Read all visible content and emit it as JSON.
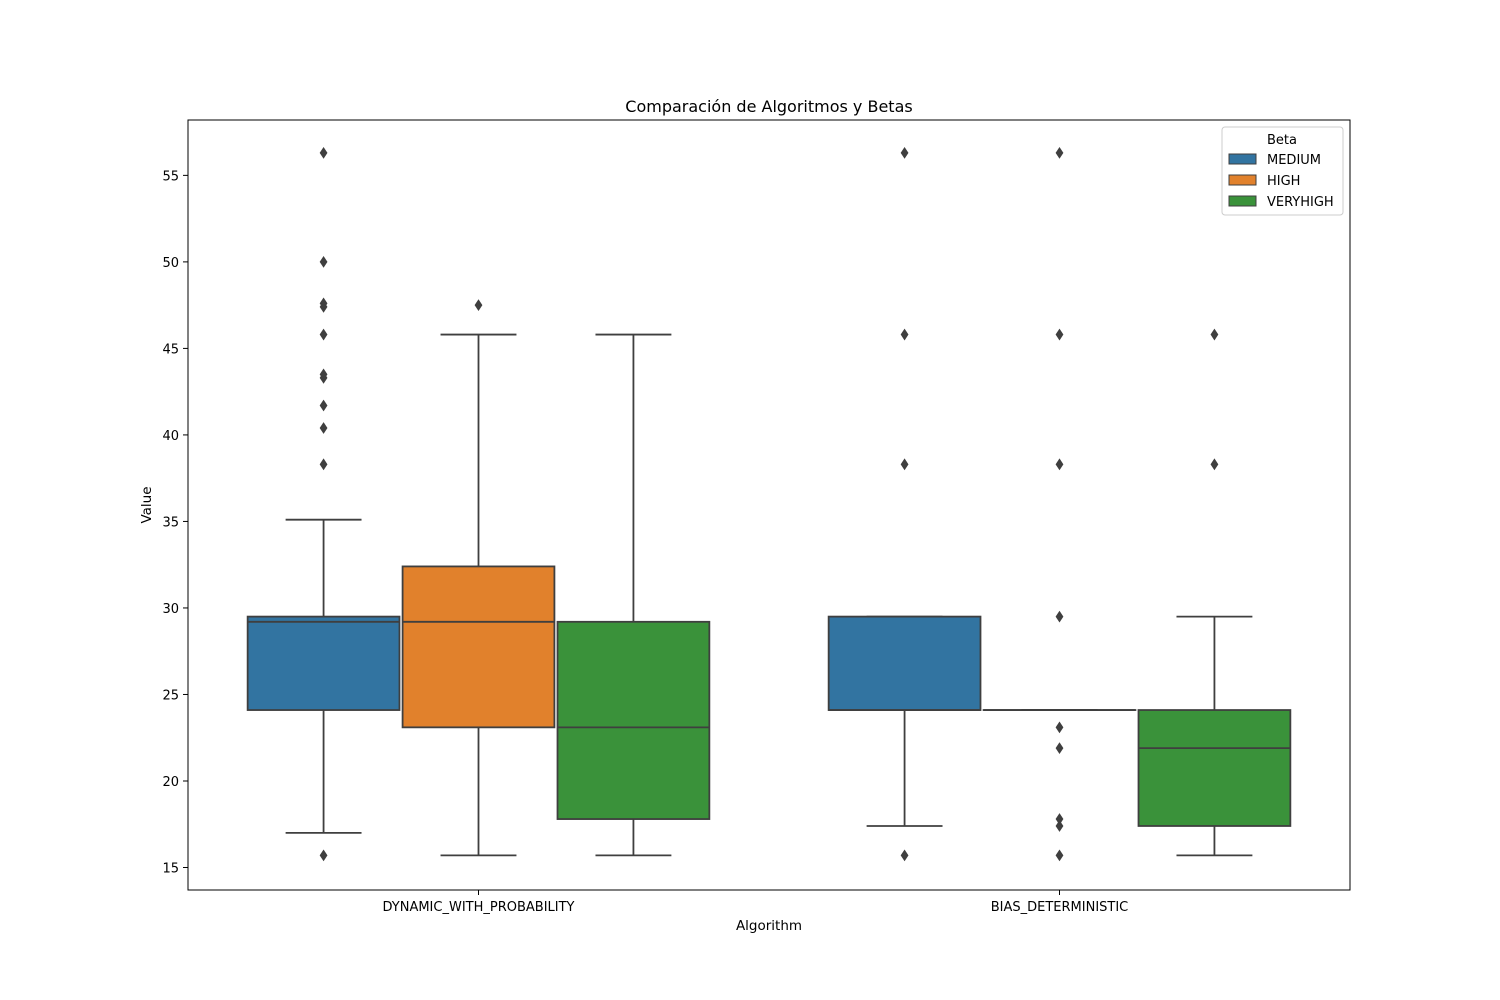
{
  "chart_data": {
    "type": "box",
    "title": "Comparación de Algoritmos y Betas",
    "xlabel": "Algorithm",
    "ylabel": "Value",
    "ylim": [
      13.7,
      58.2
    ],
    "yticks": [
      15,
      20,
      25,
      30,
      35,
      40,
      45,
      50,
      55
    ],
    "categories": [
      "DYNAMIC_WITH_PROBABILITY",
      "BIAS_DETERMINISTIC"
    ],
    "legend": {
      "title": "Beta",
      "position": "top-right"
    },
    "series": [
      {
        "name": "MEDIUM",
        "color": "#3274a1"
      },
      {
        "name": "HIGH",
        "color": "#e1812c"
      },
      {
        "name": "VERYHIGH",
        "color": "#3a923a"
      }
    ],
    "boxes": [
      {
        "category": "DYNAMIC_WITH_PROBABILITY",
        "series": "MEDIUM",
        "whisker_low": 17.0,
        "q1": 24.1,
        "median": 29.2,
        "q3": 29.5,
        "whisker_high": 35.1,
        "outliers": [
          15.7,
          38.3,
          40.4,
          41.7,
          43.3,
          43.5,
          45.8,
          47.4,
          47.6,
          50.0,
          56.3
        ]
      },
      {
        "category": "DYNAMIC_WITH_PROBABILITY",
        "series": "HIGH",
        "whisker_low": 15.7,
        "q1": 23.1,
        "median": 29.2,
        "q3": 32.4,
        "whisker_high": 45.8,
        "outliers": [
          47.5
        ]
      },
      {
        "category": "DYNAMIC_WITH_PROBABILITY",
        "series": "VERYHIGH",
        "whisker_low": 15.7,
        "q1": 17.8,
        "median": 23.1,
        "q3": 29.2,
        "whisker_high": 45.8,
        "outliers": []
      },
      {
        "category": "BIAS_DETERMINISTIC",
        "series": "MEDIUM",
        "whisker_low": 17.4,
        "q1": 24.1,
        "median": 24.1,
        "q3": 29.5,
        "whisker_high": 29.5,
        "outliers": [
          15.7,
          38.3,
          45.8,
          56.3
        ]
      },
      {
        "category": "BIAS_DETERMINISTIC",
        "series": "HIGH",
        "whisker_low": 24.1,
        "q1": 24.1,
        "median": 24.1,
        "q3": 24.1,
        "whisker_high": 24.1,
        "outliers": [
          15.7,
          17.4,
          17.8,
          21.9,
          23.1,
          29.5,
          38.3,
          45.8,
          56.3
        ]
      },
      {
        "category": "BIAS_DETERMINISTIC",
        "series": "VERYHIGH",
        "whisker_low": 15.7,
        "q1": 17.4,
        "median": 21.9,
        "q3": 24.1,
        "whisker_high": 29.5,
        "outliers": [
          38.3,
          45.8
        ]
      }
    ]
  }
}
